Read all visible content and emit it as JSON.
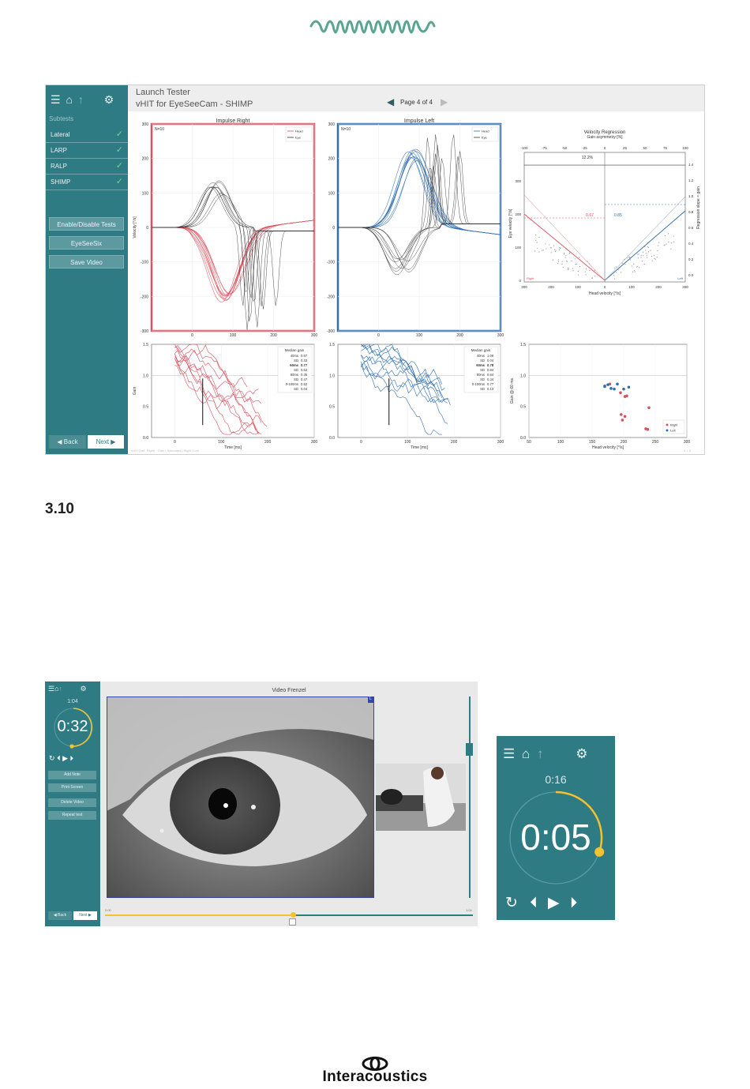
{
  "colors": {
    "teal": "#2e7b83",
    "right": "#d9515e",
    "left": "#2f6fb0",
    "timer": "#f2c230"
  },
  "section_number": "3.10",
  "footer_brand": "Interacoustics",
  "screen1": {
    "sidebar": {
      "header": "Subtests",
      "subtests": [
        {
          "label": "Lateral"
        },
        {
          "label": "LARP"
        },
        {
          "label": "RALP"
        },
        {
          "label": "SHIMP"
        }
      ],
      "buttons": {
        "enable": "Enable/Disable Tests",
        "eyeseesix": "EyeSeeSix",
        "save": "Save Video"
      },
      "back": "Back",
      "next": "Next"
    },
    "header": {
      "line1": "Launch Tester",
      "line2": "vHIT for EyeSeeCam  -  SHIMP",
      "page": "Page 4 of 4"
    },
    "footer_left": "vHIT (Left, Right) · Gain | Saccades | Right | Left",
    "footer_right": "1.2.3"
  },
  "chart_data": [
    {
      "type": "line",
      "title": "Impulse Right",
      "annotation": "N=10",
      "ylabel": "Velocity [°/s]",
      "xlabel": "",
      "ylim": [
        -300,
        300
      ],
      "xlim": [
        -100,
        300
      ],
      "xticks": [
        "0",
        "100",
        "200",
        "300"
      ],
      "yticks": [
        "300",
        "200",
        "100",
        "0",
        "-100",
        "-200",
        "-300"
      ],
      "series": [
        {
          "name": "Head"
        },
        {
          "name": "Eye"
        }
      ]
    },
    {
      "type": "line",
      "title": "Impulse Left",
      "annotation": "N=10",
      "xlabel": "",
      "ylim": [
        -300,
        300
      ],
      "xlim": [
        -100,
        300
      ],
      "xticks": [
        "0",
        "100",
        "200",
        "300"
      ],
      "yticks": [
        "300",
        "200",
        "100",
        "0",
        "-100",
        "-200",
        "-300"
      ],
      "series": [
        {
          "name": "Head"
        },
        {
          "name": "Eye"
        }
      ]
    },
    {
      "type": "line",
      "title": "Velocity Regression",
      "subtitle": "Gain asymmetry [%]",
      "xlabel": "Head velocity [°/s]",
      "ylabel": "Eye velocity [°/s]",
      "ylabel_right": "Regression slope = gain",
      "top_ticks": [
        "-100",
        "-75",
        "-50",
        "-25",
        "0",
        "25",
        "50",
        "75",
        "100"
      ],
      "xticks": [
        "300",
        "200",
        "100",
        "0",
        "100",
        "200",
        "300"
      ],
      "yticks": [
        "300",
        "200",
        "100",
        "0"
      ],
      "right_ticks": [
        "1.4",
        "1.2",
        "1.0",
        "0.8",
        "0.6",
        "0.4",
        "0.2",
        "0.0"
      ],
      "asymmetry": "12.2%",
      "gain_right": "0.67",
      "gain_left": "0.85",
      "side_left": "Right",
      "side_right": "Left"
    },
    {
      "type": "line",
      "xlabel": "Time [ms]",
      "ylabel": "Gain",
      "ylim": [
        0,
        1.5
      ],
      "xlim": [
        -50,
        300
      ],
      "xticks": [
        "0",
        "100",
        "200",
        "300"
      ],
      "yticks": [
        "1.5",
        "1.0",
        "0.5",
        "0.0"
      ],
      "table_title": "Median gain",
      "table": [
        [
          "40ms",
          "0.97"
        ],
        [
          "SD",
          "0.33"
        ],
        [
          "60ms",
          "0.77"
        ],
        [
          "SD",
          "0.52"
        ],
        [
          "80ms",
          "0.35"
        ],
        [
          "SD",
          "0.47"
        ],
        [
          "0-100ms",
          "0.52"
        ],
        [
          "SD",
          "0.04"
        ]
      ]
    },
    {
      "type": "line",
      "xlabel": "Time [ms]",
      "ylim": [
        0,
        1.5
      ],
      "xlim": [
        -50,
        300
      ],
      "xticks": [
        "0",
        "100",
        "200",
        "300"
      ],
      "yticks": [
        "1.5",
        "1.0",
        "0.5",
        "0.0"
      ],
      "table_title": "Median gain",
      "table": [
        [
          "40ms",
          "1.09"
        ],
        [
          "SD",
          "0.04"
        ],
        [
          "60ms",
          "0.78"
        ],
        [
          "SD",
          "0.84"
        ],
        [
          "80ms",
          "0.84"
        ],
        [
          "SD",
          "0.34"
        ],
        [
          "0-100ms",
          "0.77"
        ],
        [
          "SD",
          "0.13"
        ]
      ]
    },
    {
      "type": "scatter",
      "xlabel": "Head velocity [°/s]",
      "ylabel": "Gain @ 60 ms",
      "xlim": [
        50,
        300
      ],
      "ylim": [
        0,
        1.5
      ],
      "xticks": [
        "50",
        "100",
        "150",
        "200",
        "250",
        "300"
      ],
      "yticks": [
        "1.5",
        "1.0",
        "0.5",
        "0.0"
      ],
      "series": [
        {
          "name": "Right",
          "points": [
            [
              170,
              0.83
            ],
            [
              178,
              0.86
            ],
            [
              195,
              0.72
            ],
            [
              202,
              0.66
            ],
            [
              205,
              0.67
            ],
            [
              196,
              0.37
            ],
            [
              202,
              0.34
            ],
            [
              198,
              0.28
            ],
            [
              235,
              0.14
            ],
            [
              238,
              0.13
            ],
            [
              240,
              0.48
            ]
          ]
        },
        {
          "name": "Left",
          "points": [
            [
              170,
              0.82
            ],
            [
              175,
              0.85
            ],
            [
              180,
              0.79
            ],
            [
              185,
              0.78
            ],
            [
              190,
              0.86
            ],
            [
              208,
              0.81
            ],
            [
              200,
              0.78
            ]
          ]
        }
      ]
    }
  ],
  "screen2": {
    "sidebar": {
      "small_time": "1:04",
      "timer": "0:32",
      "buttons": [
        "Add Note",
        "Print Screen",
        "Delete Video",
        "Repeat test"
      ],
      "back": "Back",
      "next": "Next"
    },
    "video_title": "Video Frenzel",
    "corner_label": "L",
    "start_time": "0:00",
    "end_time": "1:04"
  },
  "zoom": {
    "small_time": "0:16",
    "timer": "0:05",
    "fraction": 0.3
  }
}
